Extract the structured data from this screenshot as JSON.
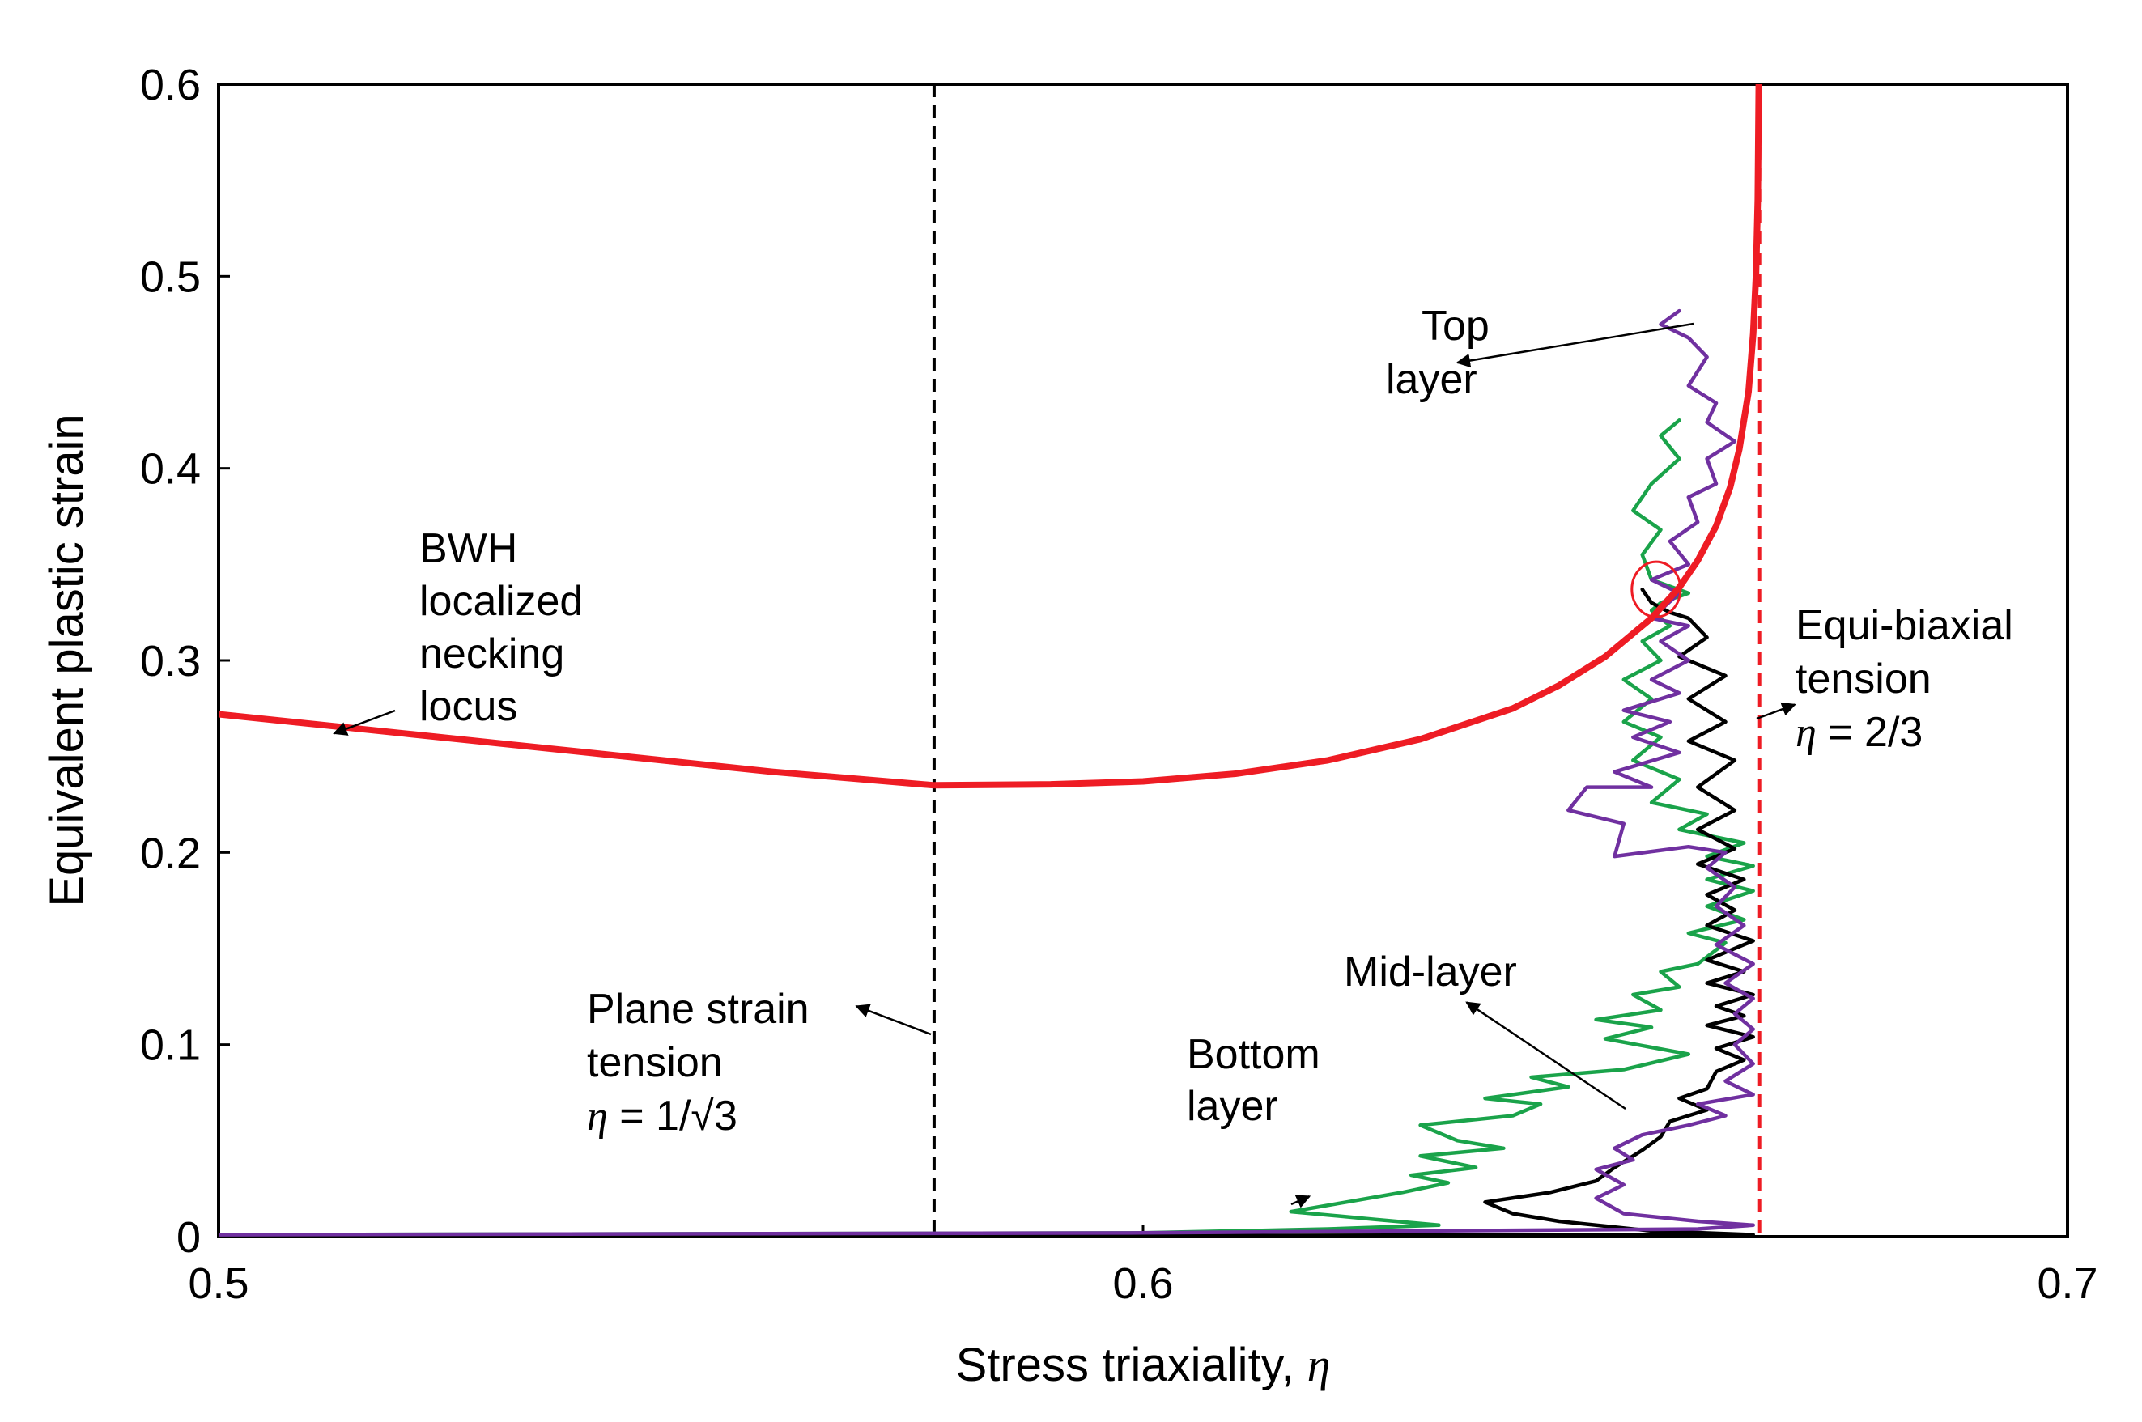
{
  "chart_data": {
    "type": "line",
    "xlabel": "Stress triaxiality, ",
    "xlabel_symbol": "η",
    "ylabel": "Equivalent plastic strain",
    "xlim": [
      0.5,
      0.7
    ],
    "ylim": [
      0,
      0.6
    ],
    "x_ticks": [
      0.5,
      0.6,
      0.7
    ],
    "x_tick_labels": [
      "0.5",
      "0.6",
      "0.7"
    ],
    "y_ticks": [
      0,
      0.1,
      0.2,
      0.3,
      0.4,
      0.5,
      0.6
    ],
    "y_tick_labels": [
      "0",
      "0.1",
      "0.2",
      "0.3",
      "0.4",
      "0.5",
      "0.6"
    ],
    "grid": false,
    "legend": "none",
    "series": [
      {
        "name": "BWH localized necking locus",
        "color": "#ee1c24",
        "style": "solid-thick",
        "points": [
          [
            0.5,
            0.272
          ],
          [
            0.52,
            0.262
          ],
          [
            0.54,
            0.252
          ],
          [
            0.56,
            0.242
          ],
          [
            0.5774,
            0.235
          ],
          [
            0.59,
            0.2355
          ],
          [
            0.6,
            0.237
          ],
          [
            0.61,
            0.241
          ],
          [
            0.62,
            0.248
          ],
          [
            0.63,
            0.259
          ],
          [
            0.64,
            0.275
          ],
          [
            0.645,
            0.287
          ],
          [
            0.65,
            0.302
          ],
          [
            0.655,
            0.322
          ],
          [
            0.658,
            0.338
          ],
          [
            0.66,
            0.352
          ],
          [
            0.662,
            0.37
          ],
          [
            0.6635,
            0.39
          ],
          [
            0.6645,
            0.41
          ],
          [
            0.6655,
            0.44
          ],
          [
            0.666,
            0.47
          ],
          [
            0.6663,
            0.5
          ],
          [
            0.6665,
            0.54
          ],
          [
            0.6666,
            0.6
          ]
        ]
      },
      {
        "name": "Top layer",
        "color": "#7030a0",
        "style": "solid",
        "points": [
          [
            0.5,
            0.001
          ],
          [
            0.6,
            0.002
          ],
          [
            0.66,
            0.004
          ],
          [
            0.666,
            0.006
          ],
          [
            0.66,
            0.008
          ],
          [
            0.652,
            0.012
          ],
          [
            0.649,
            0.02
          ],
          [
            0.652,
            0.027
          ],
          [
            0.649,
            0.035
          ],
          [
            0.653,
            0.04
          ],
          [
            0.651,
            0.046
          ],
          [
            0.654,
            0.053
          ],
          [
            0.659,
            0.058
          ],
          [
            0.663,
            0.063
          ],
          [
            0.66,
            0.069
          ],
          [
            0.666,
            0.074
          ],
          [
            0.663,
            0.081
          ],
          [
            0.666,
            0.09
          ],
          [
            0.664,
            0.1
          ],
          [
            0.666,
            0.108
          ],
          [
            0.664,
            0.116
          ],
          [
            0.666,
            0.124
          ],
          [
            0.663,
            0.132
          ],
          [
            0.666,
            0.142
          ],
          [
            0.662,
            0.152
          ],
          [
            0.665,
            0.162
          ],
          [
            0.662,
            0.172
          ],
          [
            0.664,
            0.182
          ],
          [
            0.661,
            0.192
          ],
          [
            0.663,
            0.2
          ],
          [
            0.659,
            0.203
          ],
          [
            0.651,
            0.198
          ],
          [
            0.652,
            0.215
          ],
          [
            0.646,
            0.222
          ],
          [
            0.648,
            0.234
          ],
          [
            0.655,
            0.234
          ],
          [
            0.651,
            0.242
          ],
          [
            0.658,
            0.252
          ],
          [
            0.653,
            0.26
          ],
          [
            0.657,
            0.268
          ],
          [
            0.652,
            0.274
          ],
          [
            0.658,
            0.283
          ],
          [
            0.655,
            0.29
          ],
          [
            0.659,
            0.3
          ],
          [
            0.656,
            0.31
          ],
          [
            0.659,
            0.318
          ],
          [
            0.655,
            0.322
          ],
          [
            0.658,
            0.335
          ],
          [
            0.655,
            0.342
          ],
          [
            0.659,
            0.35
          ],
          [
            0.657,
            0.362
          ],
          [
            0.66,
            0.372
          ],
          [
            0.659,
            0.385
          ],
          [
            0.662,
            0.392
          ],
          [
            0.661,
            0.405
          ],
          [
            0.664,
            0.414
          ],
          [
            0.661,
            0.424
          ],
          [
            0.662,
            0.434
          ],
          [
            0.659,
            0.443
          ],
          [
            0.661,
            0.458
          ],
          [
            0.659,
            0.468
          ],
          [
            0.656,
            0.475
          ],
          [
            0.658,
            0.482
          ]
        ]
      },
      {
        "name": "Mid-layer",
        "color": "#000000",
        "style": "solid",
        "points": [
          [
            0.5,
            0.0
          ],
          [
            0.6,
            0.0005
          ],
          [
            0.66,
            0.001
          ],
          [
            0.666,
            0.001
          ],
          [
            0.655,
            0.003
          ],
          [
            0.645,
            0.008
          ],
          [
            0.64,
            0.012
          ],
          [
            0.637,
            0.018
          ],
          [
            0.644,
            0.023
          ],
          [
            0.649,
            0.029
          ],
          [
            0.651,
            0.036
          ],
          [
            0.654,
            0.045
          ],
          [
            0.656,
            0.052
          ],
          [
            0.657,
            0.06
          ],
          [
            0.661,
            0.066
          ],
          [
            0.658,
            0.072
          ],
          [
            0.661,
            0.077
          ],
          [
            0.662,
            0.086
          ],
          [
            0.665,
            0.092
          ],
          [
            0.662,
            0.098
          ],
          [
            0.666,
            0.104
          ],
          [
            0.661,
            0.11
          ],
          [
            0.665,
            0.115
          ],
          [
            0.662,
            0.12
          ],
          [
            0.666,
            0.126
          ],
          [
            0.661,
            0.132
          ],
          [
            0.665,
            0.138
          ],
          [
            0.661,
            0.144
          ],
          [
            0.666,
            0.154
          ],
          [
            0.661,
            0.162
          ],
          [
            0.664,
            0.17
          ],
          [
            0.661,
            0.178
          ],
          [
            0.665,
            0.186
          ],
          [
            0.66,
            0.194
          ],
          [
            0.664,
            0.202
          ],
          [
            0.66,
            0.212
          ],
          [
            0.664,
            0.222
          ],
          [
            0.66,
            0.234
          ],
          [
            0.664,
            0.248
          ],
          [
            0.659,
            0.258
          ],
          [
            0.663,
            0.268
          ],
          [
            0.659,
            0.28
          ],
          [
            0.663,
            0.292
          ],
          [
            0.658,
            0.302
          ],
          [
            0.661,
            0.312
          ],
          [
            0.659,
            0.322
          ],
          [
            0.657,
            0.325
          ],
          [
            0.655,
            0.33
          ],
          [
            0.654,
            0.337
          ]
        ]
      },
      {
        "name": "Bottom layer",
        "color": "#1aa34a",
        "style": "solid",
        "points": [
          [
            0.5,
            0.001
          ],
          [
            0.6,
            0.002
          ],
          [
            0.62,
            0.004
          ],
          [
            0.632,
            0.006
          ],
          [
            0.625,
            0.009
          ],
          [
            0.616,
            0.013
          ],
          [
            0.622,
            0.018
          ],
          [
            0.628,
            0.023
          ],
          [
            0.633,
            0.028
          ],
          [
            0.629,
            0.032
          ],
          [
            0.636,
            0.036
          ],
          [
            0.63,
            0.042
          ],
          [
            0.639,
            0.046
          ],
          [
            0.634,
            0.05
          ],
          [
            0.63,
            0.058
          ],
          [
            0.64,
            0.063
          ],
          [
            0.643,
            0.069
          ],
          [
            0.637,
            0.072
          ],
          [
            0.646,
            0.078
          ],
          [
            0.642,
            0.083
          ],
          [
            0.652,
            0.087
          ],
          [
            0.659,
            0.095
          ],
          [
            0.65,
            0.103
          ],
          [
            0.655,
            0.109
          ],
          [
            0.649,
            0.113
          ],
          [
            0.656,
            0.118
          ],
          [
            0.653,
            0.126
          ],
          [
            0.658,
            0.13
          ],
          [
            0.656,
            0.138
          ],
          [
            0.66,
            0.142
          ],
          [
            0.663,
            0.153
          ],
          [
            0.659,
            0.158
          ],
          [
            0.665,
            0.165
          ],
          [
            0.661,
            0.172
          ],
          [
            0.666,
            0.18
          ],
          [
            0.661,
            0.186
          ],
          [
            0.666,
            0.193
          ],
          [
            0.661,
            0.198
          ],
          [
            0.665,
            0.205
          ],
          [
            0.658,
            0.212
          ],
          [
            0.661,
            0.22
          ],
          [
            0.655,
            0.226
          ],
          [
            0.658,
            0.238
          ],
          [
            0.653,
            0.248
          ],
          [
            0.656,
            0.26
          ],
          [
            0.652,
            0.268
          ],
          [
            0.655,
            0.28
          ],
          [
            0.652,
            0.29
          ],
          [
            0.656,
            0.3
          ],
          [
            0.654,
            0.31
          ],
          [
            0.657,
            0.318
          ],
          [
            0.655,
            0.326
          ],
          [
            0.656,
            0.33
          ],
          [
            0.659,
            0.335
          ],
          [
            0.655,
            0.342
          ],
          [
            0.654,
            0.355
          ],
          [
            0.656,
            0.368
          ],
          [
            0.653,
            0.378
          ],
          [
            0.655,
            0.392
          ],
          [
            0.658,
            0.405
          ],
          [
            0.656,
            0.417
          ],
          [
            0.658,
            0.425
          ]
        ]
      }
    ],
    "reference_lines": [
      {
        "label": "Plane strain tension",
        "x": 0.5774,
        "color": "#000000",
        "style": "dashed"
      },
      {
        "label": "Equi-biaxial tension",
        "x": 0.6667,
        "color": "#ee1c24",
        "style": "dashed"
      }
    ],
    "marker": {
      "type": "circle",
      "x": 0.6555,
      "y": 0.337,
      "color": "#ee1c24"
    },
    "annotations": {
      "bwh": {
        "lines": [
          "BWH",
          "localized",
          "necking",
          "locus"
        ],
        "arrow_tip": [
          0.5125,
          0.262
        ]
      },
      "plane_strain": {
        "lines": [
          "Plane strain",
          "tension"
        ],
        "eq_prefix": "η",
        "eq_text": " = 1/√3",
        "arrow_tip": [
          0.569,
          0.12
        ]
      },
      "top_layer": {
        "lines": [
          "Top",
          "layer"
        ],
        "arrow_tip": [
          0.634,
          0.455
        ]
      },
      "mid_layer": {
        "lines": [
          "Mid-layer"
        ],
        "arrow_tip": [
          0.635,
          0.122
        ]
      },
      "bottom_layer": {
        "lines": [
          "Bottom",
          "layer"
        ],
        "arrow_tip": [
          0.618,
          0.021
        ]
      },
      "equi_biaxial": {
        "lines": [
          "Equi-biaxial",
          "tension"
        ],
        "eq_prefix": "η",
        "eq_text": " = 2/3",
        "arrow_tip": [
          0.6705,
          0.277
        ]
      }
    }
  }
}
